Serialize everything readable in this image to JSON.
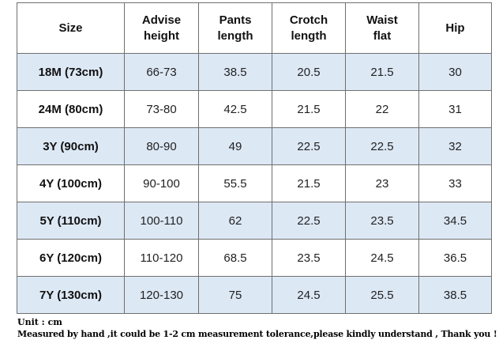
{
  "table": {
    "headers": [
      [
        "Size"
      ],
      [
        "Advise",
        "height"
      ],
      [
        "Pants",
        "length"
      ],
      [
        "Crotch",
        "length"
      ],
      [
        "Waist",
        "flat"
      ],
      [
        "Hip"
      ]
    ],
    "rows": [
      [
        "18M (73cm)",
        "66-73",
        "38.5",
        "20.5",
        "21.5",
        "30"
      ],
      [
        "24M (80cm)",
        "73-80",
        "42.5",
        "21.5",
        "22",
        "31"
      ],
      [
        "3Y (90cm)",
        "80-90",
        "49",
        "22.5",
        "22.5",
        "32"
      ],
      [
        "4Y (100cm)",
        "90-100",
        "55.5",
        "21.5",
        "23",
        "33"
      ],
      [
        "5Y (110cm)",
        "100-110",
        "62",
        "22.5",
        "23.5",
        "34.5"
      ],
      [
        "6Y (120cm)",
        "110-120",
        "68.5",
        "23.5",
        "24.5",
        "36.5"
      ],
      [
        "7Y (130cm)",
        "120-130",
        "75",
        "24.5",
        "25.5",
        "38.5"
      ]
    ],
    "row_shading": [
      "shaded",
      "plain",
      "shaded",
      "plain",
      "shaded",
      "plain",
      "shaded"
    ],
    "colors": {
      "shaded_row": "#dde8f5",
      "plain_row": "#ffffff",
      "border": "#6f6f6f"
    }
  },
  "notes": {
    "unit": "Unit : cm",
    "disclaimer": "Measured by hand ,it could be 1-2 cm measurement tolerance,please kindly understand , Thank you !"
  }
}
